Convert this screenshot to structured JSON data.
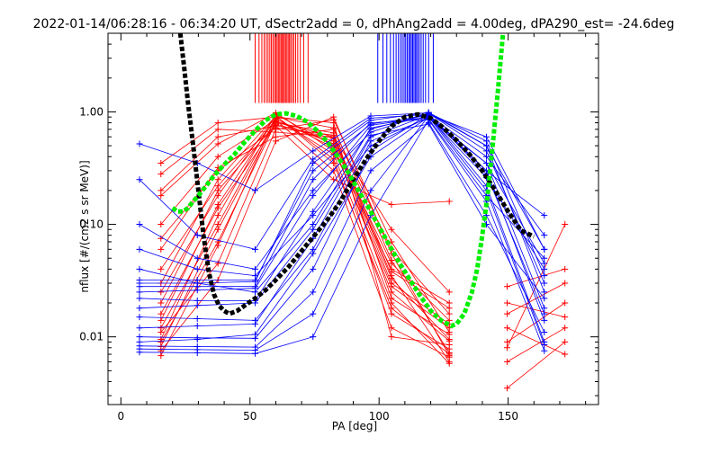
{
  "chart_data": {
    "type": "line",
    "title": "2022-01-14/06:28:16 - 06:34:20 UT, dSectr2add = 0, dPhAng2add = 4.00deg, dPA290_est= -24.6deg",
    "xlabel": "PA [deg]",
    "ylabel": "nflux [#/(cm2 s sr MeV)]",
    "xlim": [
      -5,
      185
    ],
    "ylim": [
      0.0025,
      5
    ],
    "yscale": "log",
    "x_ticks": [
      0,
      50,
      100,
      150
    ],
    "x_tick_labels": [
      "0",
      "50",
      "100",
      "150"
    ],
    "y_ticks": [
      0.01,
      0.1,
      1.0
    ],
    "y_tick_labels": [
      "0.01",
      "0.10",
      "1.00"
    ],
    "grid": false,
    "colors": {
      "red": "#ff0000",
      "blue": "#0000ff",
      "black": "#000000",
      "green": "#00ee00"
    },
    "rug_red_x": [
      52.0,
      53.5,
      54.6,
      55.5,
      56.3,
      57.0,
      57.7,
      58.3,
      58.9,
      59.5,
      60.0,
      60.5,
      61.0,
      61.5,
      62.0,
      62.4,
      62.9,
      63.3,
      63.8,
      64.3,
      64.8,
      65.3,
      65.8,
      66.4,
      67.0,
      67.7,
      68.5,
      69.5,
      70.8,
      72.5
    ],
    "rug_blue_x": [
      99.5,
      101.5,
      103.0,
      104.4,
      105.6,
      106.6,
      107.5,
      108.3,
      109.0,
      109.7,
      110.3,
      110.9,
      111.5,
      112.0,
      112.5,
      113.0,
      113.5,
      114.0,
      114.5,
      115.0,
      115.6,
      116.3,
      117.1,
      118.0,
      119.2,
      121.0
    ],
    "series": [
      {
        "color": "black",
        "style": "dashed-thick",
        "x": [
          23.0,
          24.5,
          26.0,
          28.0,
          30.0,
          32.0,
          34.0,
          36.0,
          38.0,
          40.0,
          42.0,
          45.0,
          48.0,
          52.0,
          56.0,
          60.0,
          65.0,
          70.0,
          75.0,
          80.0,
          85.0,
          90.0,
          95.0,
          100.0,
          105.0,
          110.0,
          115.0,
          120.0,
          125.0,
          130.0,
          135.0,
          140.0,
          145.0,
          150.0,
          155.0,
          160.0
        ],
        "y": [
          5.0,
          2.5,
          1.2,
          0.5,
          0.2,
          0.08,
          0.038,
          0.024,
          0.019,
          0.017,
          0.016,
          0.017,
          0.019,
          0.022,
          0.026,
          0.032,
          0.042,
          0.058,
          0.08,
          0.11,
          0.16,
          0.25,
          0.38,
          0.55,
          0.75,
          0.9,
          0.95,
          0.88,
          0.72,
          0.56,
          0.42,
          0.3,
          0.2,
          0.13,
          0.088,
          0.078
        ]
      },
      {
        "color": "green",
        "style": "dashed-thick",
        "x": [
          20.0,
          22.0,
          24.0,
          26.0,
          28.0,
          30.0,
          33.0,
          36.0,
          40.0,
          44.0,
          48.0,
          52.0,
          56.0,
          60.0,
          64.0,
          68.0,
          72.0,
          76.0,
          80.0,
          84.0,
          88.0,
          92.0,
          96.0,
          100.0,
          104.0,
          108.0,
          112.0,
          116.0,
          120.0,
          124.0,
          128.0,
          130.0,
          133.0,
          136.0,
          138.0,
          140.0,
          142.0,
          144.0,
          146.0,
          148.0
        ],
        "y": [
          0.14,
          0.13,
          0.13,
          0.14,
          0.16,
          0.18,
          0.22,
          0.27,
          0.34,
          0.42,
          0.54,
          0.68,
          0.84,
          0.95,
          0.97,
          0.92,
          0.82,
          0.68,
          0.54,
          0.4,
          0.29,
          0.2,
          0.14,
          0.095,
          0.065,
          0.045,
          0.032,
          0.023,
          0.017,
          0.014,
          0.0125,
          0.013,
          0.016,
          0.025,
          0.04,
          0.08,
          0.18,
          0.5,
          1.5,
          5.0
        ]
      }
    ],
    "red_profiles": [
      {
        "x": [
          15.5,
          37.6,
          60.0,
          82.4,
          104.8,
          127.2
        ],
        "y": [
          0.0068,
          0.065,
          0.9,
          0.72,
          0.048,
          0.0072
        ]
      },
      {
        "x": [
          15.5,
          37.6,
          60.0,
          82.4,
          104.8,
          127.2
        ],
        "y": [
          0.0082,
          0.09,
          0.82,
          0.6,
          0.035,
          0.006
        ]
      },
      {
        "x": [
          15.5,
          37.6,
          60.0,
          82.4,
          104.8,
          127.2
        ],
        "y": [
          0.0095,
          0.12,
          0.95,
          0.5,
          0.025,
          0.0092
        ]
      },
      {
        "x": [
          15.5,
          37.6,
          60.0,
          82.4,
          104.8,
          127.2
        ],
        "y": [
          0.011,
          0.045,
          0.7,
          0.85,
          0.07,
          0.011
        ]
      },
      {
        "x": [
          15.5,
          37.6,
          60.0,
          82.4,
          104.8,
          127.2
        ],
        "y": [
          0.014,
          0.15,
          0.88,
          0.42,
          0.02,
          0.0058
        ]
      },
      {
        "x": [
          15.5,
          37.6,
          60.0,
          82.4,
          104.8,
          127.2
        ],
        "y": [
          0.02,
          0.2,
          0.78,
          0.55,
          0.03,
          0.013
        ]
      },
      {
        "x": [
          15.5,
          37.6,
          60.0,
          82.4,
          104.8,
          127.2
        ],
        "y": [
          0.03,
          0.25,
          0.92,
          0.38,
          0.016,
          0.0078
        ]
      },
      {
        "x": [
          15.5,
          37.6,
          60.0,
          82.4,
          104.8,
          127.2
        ],
        "y": [
          0.06,
          0.32,
          0.6,
          0.7,
          0.06,
          0.016
        ]
      },
      {
        "x": [
          15.5,
          37.6,
          60.0,
          82.4,
          104.8,
          127.2
        ],
        "y": [
          0.1,
          0.4,
          0.85,
          0.3,
          0.012,
          0.0066
        ]
      },
      {
        "x": [
          15.5,
          37.6,
          60.0,
          82.4,
          104.8,
          127.2
        ],
        "y": [
          0.18,
          0.52,
          0.98,
          0.45,
          0.04,
          0.02
        ]
      },
      {
        "x": [
          15.5,
          37.6,
          60.0,
          82.4,
          104.8,
          127.2
        ],
        "y": [
          0.2,
          0.6,
          0.75,
          0.25,
          0.15,
          0.16
        ]
      },
      {
        "x": [
          15.5,
          37.6,
          60.0,
          82.4,
          104.8,
          127.2
        ],
        "y": [
          0.28,
          0.7,
          0.66,
          0.6,
          0.09,
          0.025
        ]
      },
      {
        "x": [
          15.5,
          37.6,
          60.0,
          82.4,
          104.8,
          127.2
        ],
        "y": [
          0.35,
          0.8,
          0.9,
          0.8,
          0.01,
          0.0085
        ]
      },
      {
        "x": [
          15.5,
          37.6,
          60.0,
          82.4,
          104.8,
          127.2
        ],
        "y": [
          0.009,
          0.07,
          0.8,
          0.65,
          0.022,
          0.0105
        ]
      },
      {
        "x": [
          15.5,
          37.6,
          60.0,
          82.4,
          104.8,
          127.2
        ],
        "y": [
          0.0075,
          0.032,
          0.55,
          0.9,
          0.055,
          0.0068
        ]
      },
      {
        "x": [
          15.5,
          37.6,
          60.0,
          82.4,
          104.8,
          127.2
        ],
        "y": [
          0.012,
          0.1,
          0.87,
          0.48,
          0.028,
          0.012
        ]
      },
      {
        "x": [
          15.5,
          37.6,
          60.0,
          82.4,
          104.8,
          127.2
        ],
        "y": [
          0.016,
          0.14,
          0.76,
          0.58,
          0.033,
          0.0095
        ]
      },
      {
        "x": [
          15.5,
          37.6,
          60.0,
          82.4,
          104.8,
          127.2
        ],
        "y": [
          0.025,
          0.18,
          0.93,
          0.35,
          0.018,
          0.007
        ]
      },
      {
        "x": [
          15.5,
          37.6,
          60.0,
          82.4,
          104.8,
          127.2
        ],
        "y": [
          0.04,
          0.22,
          0.83,
          0.52,
          0.045,
          0.014
        ]
      },
      {
        "x": [
          15.5,
          37.6,
          60.0,
          82.4,
          104.8,
          127.2
        ],
        "y": [
          0.075,
          0.3,
          0.72,
          0.62,
          0.038,
          0.018
        ]
      },
      {
        "x": [
          149.6,
          172.0
        ],
        "y": [
          0.0035,
          0.009
        ]
      },
      {
        "x": [
          149.6,
          172.0
        ],
        "y": [
          0.006,
          0.012
        ]
      },
      {
        "x": [
          149.6,
          172.0
        ],
        "y": [
          0.009,
          0.02
        ]
      },
      {
        "x": [
          149.6,
          172.0
        ],
        "y": [
          0.012,
          0.007
        ]
      },
      {
        "x": [
          149.6,
          172.0
        ],
        "y": [
          0.016,
          0.03
        ]
      },
      {
        "x": [
          149.6,
          172.0
        ],
        "y": [
          0.02,
          0.015
        ]
      },
      {
        "x": [
          149.6,
          172.0
        ],
        "y": [
          0.028,
          0.04
        ]
      },
      {
        "x": [
          149.6,
          172.0
        ],
        "y": [
          0.008,
          0.1
        ]
      }
    ],
    "blue_profiles": [
      {
        "x": [
          7.2,
          29.6,
          52.0,
          74.4,
          96.8,
          119.2,
          141.6,
          164.0
        ],
        "y": [
          0.0073,
          0.0072,
          0.0071,
          0.01,
          0.12,
          0.85,
          0.16,
          0.0075
        ]
      },
      {
        "x": [
          7.2,
          29.6,
          52.0,
          74.4,
          96.8,
          119.2,
          141.6,
          164.0
        ],
        "y": [
          0.0078,
          0.0077,
          0.0076,
          0.016,
          0.2,
          0.92,
          0.22,
          0.009
        ]
      },
      {
        "x": [
          7.2,
          29.6,
          52.0,
          74.4,
          96.8,
          119.2,
          141.6,
          164.0
        ],
        "y": [
          0.0083,
          0.0082,
          0.0081,
          0.025,
          0.3,
          0.8,
          0.12,
          0.011
        ]
      },
      {
        "x": [
          7.2,
          29.6,
          52.0,
          74.4,
          96.8,
          119.2,
          141.6,
          164.0
        ],
        "y": [
          0.01,
          0.0098,
          0.0097,
          0.04,
          0.45,
          0.95,
          0.3,
          0.014
        ]
      },
      {
        "x": [
          7.2,
          29.6,
          52.0,
          74.4,
          96.8,
          119.2,
          141.6,
          164.0
        ],
        "y": [
          0.015,
          0.0145,
          0.014,
          0.06,
          0.55,
          0.88,
          0.35,
          0.018
        ]
      },
      {
        "x": [
          7.2,
          29.6,
          52.0,
          74.4,
          96.8,
          119.2,
          141.6,
          164.0
        ],
        "y": [
          0.018,
          0.019,
          0.02,
          0.09,
          0.62,
          0.78,
          0.1,
          0.022
        ]
      },
      {
        "x": [
          7.2,
          29.6,
          52.0,
          74.4,
          96.8,
          119.2,
          141.6,
          164.0
        ],
        "y": [
          0.022,
          0.021,
          0.021,
          0.13,
          0.7,
          0.97,
          0.45,
          0.03
        ]
      },
      {
        "x": [
          7.2,
          29.6,
          52.0,
          74.4,
          96.8,
          119.2,
          141.6,
          164.0
        ],
        "y": [
          0.025,
          0.026,
          0.027,
          0.18,
          0.76,
          0.9,
          0.26,
          0.04
        ]
      },
      {
        "x": [
          7.2,
          29.6,
          52.0,
          74.4,
          96.8,
          119.2,
          141.6,
          164.0
        ],
        "y": [
          0.028,
          0.028,
          0.028,
          0.25,
          0.8,
          0.86,
          0.18,
          0.05
        ]
      },
      {
        "x": [
          7.2,
          29.6,
          52.0,
          74.4,
          96.8,
          119.2,
          141.6,
          164.0
        ],
        "y": [
          0.03,
          0.03,
          0.031,
          0.35,
          0.84,
          0.99,
          0.5,
          0.06
        ]
      },
      {
        "x": [
          7.2,
          29.6,
          52.0,
          74.4,
          96.8,
          119.2,
          141.6,
          164.0
        ],
        "y": [
          0.032,
          0.032,
          0.032,
          0.3,
          0.78,
          0.93,
          0.4,
          0.08
        ]
      },
      {
        "x": [
          7.2,
          29.6,
          52.0,
          74.4,
          96.8,
          119.2,
          141.6,
          164.0
        ],
        "y": [
          0.06,
          0.04,
          0.035,
          0.12,
          0.5,
          0.9,
          0.3,
          0.12
        ]
      },
      {
        "x": [
          7.2,
          29.6,
          52.0,
          74.4,
          96.8,
          119.2,
          141.6,
          164.0
        ],
        "y": [
          0.1,
          0.05,
          0.04,
          0.2,
          0.66,
          0.97,
          0.5,
          0.025
        ]
      },
      {
        "x": [
          7.2,
          29.6,
          52.0,
          74.4,
          96.8,
          119.2,
          141.6,
          164.0
        ],
        "y": [
          0.25,
          0.08,
          0.06,
          0.38,
          0.88,
          0.95,
          0.6,
          0.06
        ]
      },
      {
        "x": [
          7.2,
          29.6,
          52.0,
          74.4,
          96.8,
          119.2,
          141.6,
          164.0
        ],
        "y": [
          0.52,
          0.35,
          0.2,
          0.45,
          0.92,
          0.98,
          0.55,
          0.035
        ]
      },
      {
        "x": [
          7.2,
          29.6,
          52.0,
          74.4,
          96.8,
          119.2,
          141.6,
          164.0
        ],
        "y": [
          0.009,
          0.0095,
          0.0105,
          0.055,
          0.4,
          0.9,
          0.2,
          0.0085
        ]
      },
      {
        "x": [
          7.2,
          29.6,
          52.0,
          74.4,
          96.8,
          119.2,
          141.6,
          164.0
        ],
        "y": [
          0.012,
          0.0125,
          0.013,
          0.075,
          0.6,
          0.94,
          0.28,
          0.016
        ]
      },
      {
        "x": [
          7.2,
          29.6,
          52.0,
          74.4,
          96.8,
          119.2,
          141.6,
          164.0
        ],
        "y": [
          0.04,
          0.03,
          0.025,
          0.1,
          0.72,
          0.91,
          0.35,
          0.045
        ]
      }
    ]
  }
}
